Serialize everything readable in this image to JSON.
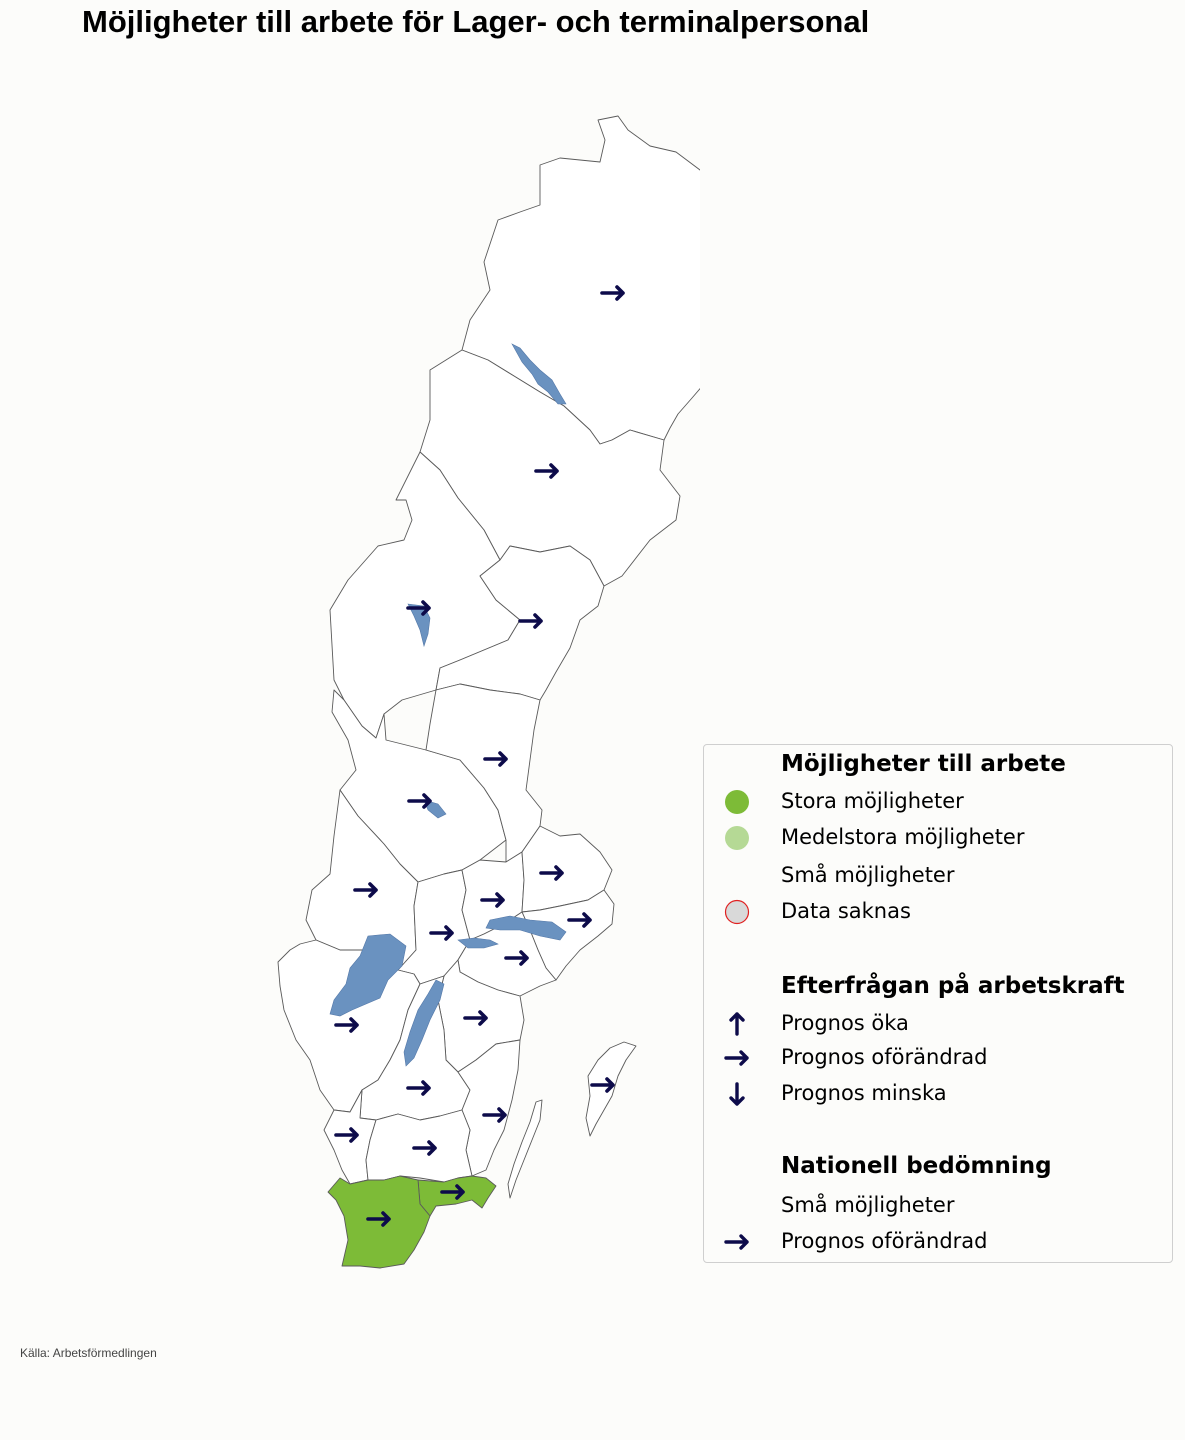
{
  "title": "Möjligheter till arbete för Lager- och terminalpersonal",
  "source": "Källa: Arbetsförmedlingen",
  "colors": {
    "stora": "#7dbb37",
    "medelstora": "#b5d995",
    "sma": "#ffffff",
    "saknas_fill": "#d9d9d9",
    "saknas_stroke": "#e02020",
    "lake": "#6a92c0",
    "arrow": "#0d0b4a",
    "border": "#5a5a5a"
  },
  "map": {
    "regions": [
      {
        "name": "Norrbotten",
        "level": "Små möjligheter",
        "trend": "Prognos oförändrad"
      },
      {
        "name": "Västerbotten",
        "level": "Små möjligheter",
        "trend": "Prognos oförändrad"
      },
      {
        "name": "Jämtland",
        "level": "Små möjligheter",
        "trend": "Prognos oförändrad"
      },
      {
        "name": "Västernorrland",
        "level": "Små möjligheter",
        "trend": "Prognos oförändrad"
      },
      {
        "name": "Gävleborg",
        "level": "Små möjligheter",
        "trend": "Prognos oförändrad"
      },
      {
        "name": "Dalarna",
        "level": "Små möjligheter",
        "trend": "Prognos oförändrad"
      },
      {
        "name": "Värmland",
        "level": "Små möjligheter",
        "trend": "Prognos oförändrad"
      },
      {
        "name": "Örebro",
        "level": "Små möjligheter",
        "trend": "Prognos oförändrad"
      },
      {
        "name": "Västmanland",
        "level": "Små möjligheter",
        "trend": "Prognos oförändrad"
      },
      {
        "name": "Uppsala",
        "level": "Små möjligheter",
        "trend": "Prognos oförändrad"
      },
      {
        "name": "Stockholm",
        "level": "Små möjligheter",
        "trend": "Prognos oförändrad"
      },
      {
        "name": "Södermanland",
        "level": "Små möjligheter",
        "trend": "Prognos oförändrad"
      },
      {
        "name": "Östergötland",
        "level": "Små möjligheter",
        "trend": "Prognos oförändrad"
      },
      {
        "name": "Västra Götaland",
        "level": "Små möjligheter",
        "trend": "Prognos oförändrad"
      },
      {
        "name": "Jönköping",
        "level": "Små möjligheter",
        "trend": "Prognos oförändrad"
      },
      {
        "name": "Kalmar",
        "level": "Små möjligheter",
        "trend": "Prognos oförändrad"
      },
      {
        "name": "Gotland",
        "level": "Små möjligheter",
        "trend": "Prognos oförändrad"
      },
      {
        "name": "Halland",
        "level": "Små möjligheter",
        "trend": "Prognos oförändrad"
      },
      {
        "name": "Kronoberg",
        "level": "Små möjligheter",
        "trend": "Prognos oförändrad"
      },
      {
        "name": "Blekinge",
        "level": "Stora möjligheter",
        "trend": "Prognos oförändrad"
      },
      {
        "name": "Skåne",
        "level": "Stora möjligheter",
        "trend": "Prognos oförändrad"
      }
    ]
  },
  "legend": {
    "section1_title": "Möjligheter till arbete",
    "stora": "Stora möjligheter",
    "medelstora": "Medelstora möjligheter",
    "sma": "Små möjligheter",
    "saknas": "Data saknas",
    "section2_title": "Efterfrågan på arbetskraft",
    "oka": "Prognos öka",
    "oforandrad": "Prognos oförändrad",
    "minska": "Prognos minska",
    "section3_title": "Nationell bedömning",
    "national_level": "Små möjligheter",
    "national_trend": "Prognos oförändrad"
  }
}
